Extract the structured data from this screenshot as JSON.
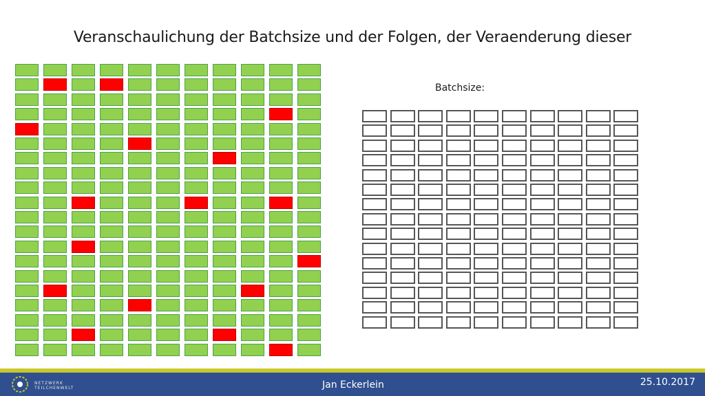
{
  "slide": {
    "title": "Veranschaulichung der Batchsize und der Folgen, der Veraenderung dieser",
    "batch_label": "Batchsize:"
  },
  "left_grid": {
    "rows": 20,
    "cols": 11,
    "fill_color": "#92d050",
    "highlight_color": "#ff0000",
    "red_cells": [
      [
        1,
        1
      ],
      [
        1,
        3
      ],
      [
        3,
        9
      ],
      [
        4,
        0
      ],
      [
        5,
        4
      ],
      [
        6,
        7
      ],
      [
        9,
        2
      ],
      [
        9,
        6
      ],
      [
        9,
        9
      ],
      [
        12,
        2
      ],
      [
        13,
        10
      ],
      [
        15,
        1
      ],
      [
        15,
        8
      ],
      [
        16,
        4
      ],
      [
        18,
        2
      ],
      [
        18,
        7
      ],
      [
        19,
        9
      ]
    ]
  },
  "right_grid": {
    "rows": 15,
    "cols": 10,
    "stroke_color": "#555555"
  },
  "footer": {
    "logo_text_line1": "NETZWERK",
    "logo_text_line2": "TEILCHENWELT",
    "presenter": "Jan Eckerlein",
    "date": "25.10.2017",
    "bar_color": "#2f4f8f",
    "accent_color": "#c8c82a"
  }
}
